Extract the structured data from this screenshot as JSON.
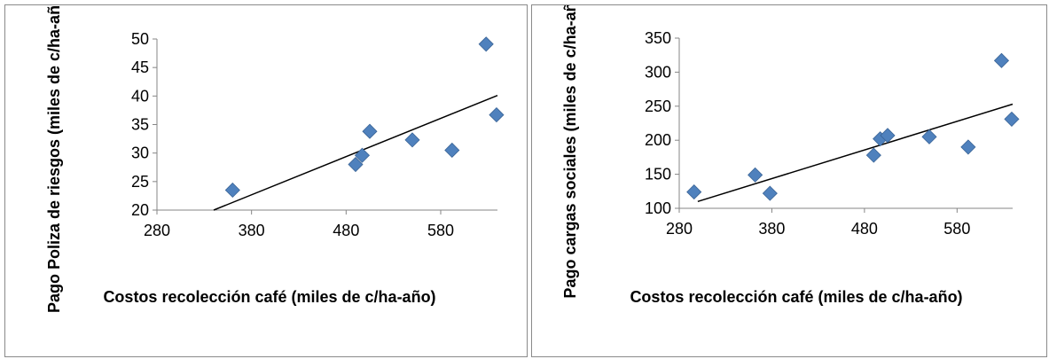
{
  "chart_data": [
    {
      "type": "scatter",
      "title": "",
      "xlabel": "Costos recolección café (miles de c/ha-año)",
      "ylabel": "Pago Poliza de riesgos (miles de c/ha-año)",
      "xlim": [
        280,
        640
      ],
      "ylim": [
        20,
        50
      ],
      "xticks": [
        280,
        380,
        480,
        580
      ],
      "yticks": [
        20,
        25,
        30,
        35,
        40,
        45,
        50
      ],
      "marker_color": "#4f81bd",
      "trendline": {
        "type": "linear",
        "x": [
          340,
          640
        ],
        "y": [
          20,
          40.1
        ],
        "color": "#000000"
      },
      "series": [
        {
          "x": [
            360,
            490,
            497,
            505,
            550,
            592,
            628,
            639
          ],
          "y": [
            23.5,
            28,
            29.6,
            33.8,
            32.3,
            30.5,
            49.1,
            36.7
          ]
        }
      ]
    },
    {
      "type": "scatter",
      "title": "",
      "xlabel": "Costos recolección café (miles de c/ha-año)",
      "ylabel": "Pago cargas sociales (miles de c/ha-año)",
      "xlim": [
        280,
        640
      ],
      "ylim": [
        100,
        350
      ],
      "xticks": [
        280,
        380,
        480,
        580
      ],
      "yticks": [
        100,
        150,
        200,
        250,
        300,
        350
      ],
      "marker_color": "#4f81bd",
      "trendline": {
        "type": "linear",
        "x": [
          300,
          640
        ],
        "y": [
          110,
          253
        ],
        "color": "#000000"
      },
      "series": [
        {
          "x": [
            296,
            362,
            378,
            490,
            497,
            505,
            550,
            592,
            628,
            639
          ],
          "y": [
            124,
            149,
            122,
            178,
            202,
            207,
            205,
            190,
            317,
            231
          ]
        }
      ]
    }
  ]
}
